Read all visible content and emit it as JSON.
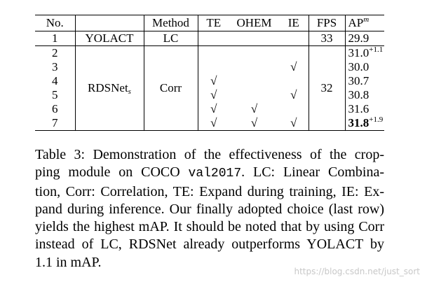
{
  "table": {
    "header": {
      "no": "No.",
      "method": "Method",
      "te": "TE",
      "ohem": "OHEM",
      "ie": "IE",
      "fps": "FPS",
      "ap": "AP",
      "ap_sup": "m"
    },
    "groups": [
      {
        "model": "YOLACT",
        "method": "LC",
        "fps": "33",
        "rows": [
          {
            "no": "1",
            "ap": "29.9"
          }
        ]
      },
      {
        "model": "RDSNet",
        "model_sub": "s",
        "method": "Corr",
        "fps": "32",
        "rows": [
          {
            "no": "2",
            "ap": "31.0",
            "ap_sup": "+1.1"
          },
          {
            "no": "3",
            "ie": "√",
            "ap": "30.0"
          },
          {
            "no": "4",
            "te": "√",
            "ap": "30.7"
          },
          {
            "no": "5",
            "te": "√",
            "ie": "√",
            "ap": "30.8"
          },
          {
            "no": "6",
            "te": "√",
            "ohem": "√",
            "ap": "31.6"
          },
          {
            "no": "7",
            "te": "√",
            "ohem": "√",
            "ie": "√",
            "ap": "31.8",
            "ap_sup": "+1.9",
            "bold": true
          }
        ]
      }
    ]
  },
  "caption": {
    "lines": [
      [
        "Table 3: Demonstration of the effectiveness of the crop-"
      ],
      [
        "ping module on COCO ",
        {
          "code": "val2017"
        },
        ". LC: Linear Combina-"
      ],
      [
        "tion, Corr: Correlation, TE: Expand during training, IE: Ex-"
      ],
      [
        "pand during inference. Our finally adopted choice (last row)"
      ],
      [
        "yields the highest mAP. It should be noted that by using Corr"
      ],
      [
        "instead of LC, RDSNet already outperforms YOLACT by"
      ],
      [
        "1.1 in mAP."
      ]
    ]
  },
  "watermark": "https://blog.csdn.net/just_sort"
}
